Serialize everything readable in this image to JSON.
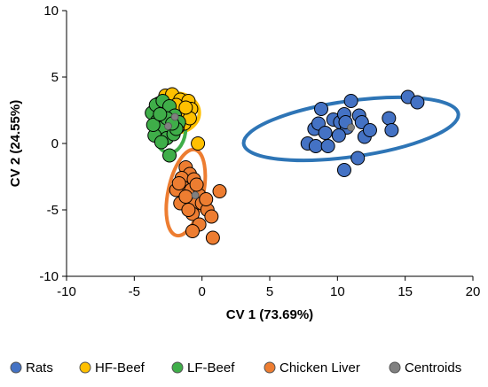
{
  "chart_data": {
    "type": "scatter",
    "title": "",
    "xlabel": "CV 1 (73.69%)",
    "ylabel": "CV 2 (24.55%)",
    "xlim": [
      -10,
      20
    ],
    "ylim": [
      -10,
      10
    ],
    "xticks": [
      -10,
      -5,
      0,
      5,
      10,
      15,
      20
    ],
    "yticks": [
      -10,
      -5,
      0,
      5,
      10
    ],
    "grid": false,
    "legend_position": "bottom",
    "series": [
      {
        "name": "Rats",
        "color": "#4472C4",
        "ellipse": {
          "cx": 11.0,
          "cy": 1.1,
          "rx": 8.0,
          "ry": 2.1,
          "angle_deg": 8,
          "color": "#2E75B6"
        },
        "points": [
          [
            8.3,
            1.1
          ],
          [
            8.6,
            1.5
          ],
          [
            8.8,
            2.6
          ],
          [
            9.1,
            0.8
          ],
          [
            7.8,
            0.0
          ],
          [
            8.4,
            -0.2
          ],
          [
            9.3,
            -0.2
          ],
          [
            9.7,
            1.8
          ],
          [
            10.2,
            1.6
          ],
          [
            10.5,
            2.2
          ],
          [
            10.7,
            1.2
          ],
          [
            10.1,
            0.6
          ],
          [
            11.0,
            3.2
          ],
          [
            11.6,
            2.1
          ],
          [
            11.8,
            1.6
          ],
          [
            12.0,
            0.5
          ],
          [
            12.4,
            1.0
          ],
          [
            11.5,
            -1.1
          ],
          [
            10.5,
            -2.0
          ],
          [
            13.8,
            1.9
          ],
          [
            14.0,
            1.0
          ],
          [
            15.2,
            3.5
          ],
          [
            15.9,
            3.1
          ],
          [
            10.6,
            1.6
          ]
        ]
      },
      {
        "name": "HF-Beef",
        "color": "#FFC000",
        "ellipse": {
          "cx": -2.0,
          "cy": 2.3,
          "rx": 1.8,
          "ry": 1.5,
          "angle_deg": 0,
          "color": "#FFC000"
        },
        "points": [
          [
            -3.2,
            3.0
          ],
          [
            -2.7,
            3.6
          ],
          [
            -2.2,
            3.7
          ],
          [
            -1.6,
            3.3
          ],
          [
            -1.0,
            3.2
          ],
          [
            -0.8,
            2.6
          ],
          [
            -2.9,
            2.1
          ],
          [
            -3.5,
            2.5
          ],
          [
            -1.3,
            1.5
          ],
          [
            -1.6,
            2.3
          ],
          [
            -0.3,
            0.0
          ],
          [
            -2.4,
            1.2
          ],
          [
            -1.9,
            2.9
          ],
          [
            -3.3,
            1.8
          ],
          [
            -0.9,
            1.9
          ],
          [
            -2.1,
            2.0
          ],
          [
            -1.2,
            2.7
          ],
          [
            -1.8,
            1.2
          ]
        ]
      },
      {
        "name": "LF-Beef",
        "color": "#3FAE49",
        "ellipse": {
          "cx": -2.4,
          "cy": 1.2,
          "rx": 1.2,
          "ry": 1.9,
          "angle_deg": 0,
          "color": "#3FAE49"
        },
        "points": [
          [
            -3.7,
            2.3
          ],
          [
            -3.4,
            2.9
          ],
          [
            -2.9,
            3.2
          ],
          [
            -2.4,
            2.8
          ],
          [
            -2.0,
            2.1
          ],
          [
            -1.7,
            1.6
          ],
          [
            -3.3,
            1.7
          ],
          [
            -2.9,
            1.2
          ],
          [
            -3.5,
            0.6
          ],
          [
            -2.6,
            0.4
          ],
          [
            -2.1,
            0.7
          ],
          [
            -3.0,
            0.1
          ],
          [
            -2.4,
            -0.9
          ],
          [
            -3.6,
            1.4
          ],
          [
            -1.9,
            1.1
          ],
          [
            -2.6,
            1.9
          ],
          [
            -3.1,
            2.2
          ],
          [
            -2.2,
            1.5
          ]
        ]
      },
      {
        "name": "Chicken Liver",
        "color": "#ED7D31",
        "ellipse": {
          "cx": -1.2,
          "cy": -3.7,
          "rx": 1.3,
          "ry": 3.3,
          "angle_deg": -12,
          "color": "#ED7D31"
        },
        "points": [
          [
            -1.2,
            -1.8
          ],
          [
            -0.9,
            -2.3
          ],
          [
            -1.5,
            -2.6
          ],
          [
            -0.6,
            -2.7
          ],
          [
            -1.4,
            -3.3
          ],
          [
            -0.8,
            -3.5
          ],
          [
            -1.9,
            -3.5
          ],
          [
            -0.2,
            -3.9
          ],
          [
            1.3,
            -3.6
          ],
          [
            -1.1,
            -4.2
          ],
          [
            -0.6,
            -4.6
          ],
          [
            -1.6,
            -4.5
          ],
          [
            0.0,
            -4.5
          ],
          [
            0.4,
            -5.0
          ],
          [
            0.7,
            -5.5
          ],
          [
            -0.7,
            -5.3
          ],
          [
            -0.2,
            -6.1
          ],
          [
            -0.7,
            -6.6
          ],
          [
            0.8,
            -7.1
          ],
          [
            -1.2,
            -4.0
          ],
          [
            -0.4,
            -3.1
          ],
          [
            -1.7,
            -3.0
          ],
          [
            0.3,
            -4.2
          ],
          [
            -1.0,
            -5.0
          ]
        ]
      },
      {
        "name": "Centroids",
        "color": "#808080",
        "points": [
          [
            11.0,
            1.2
          ],
          [
            -2.0,
            2.0
          ],
          [
            -2.5,
            1.3
          ],
          [
            -0.5,
            -3.9
          ]
        ]
      }
    ]
  }
}
